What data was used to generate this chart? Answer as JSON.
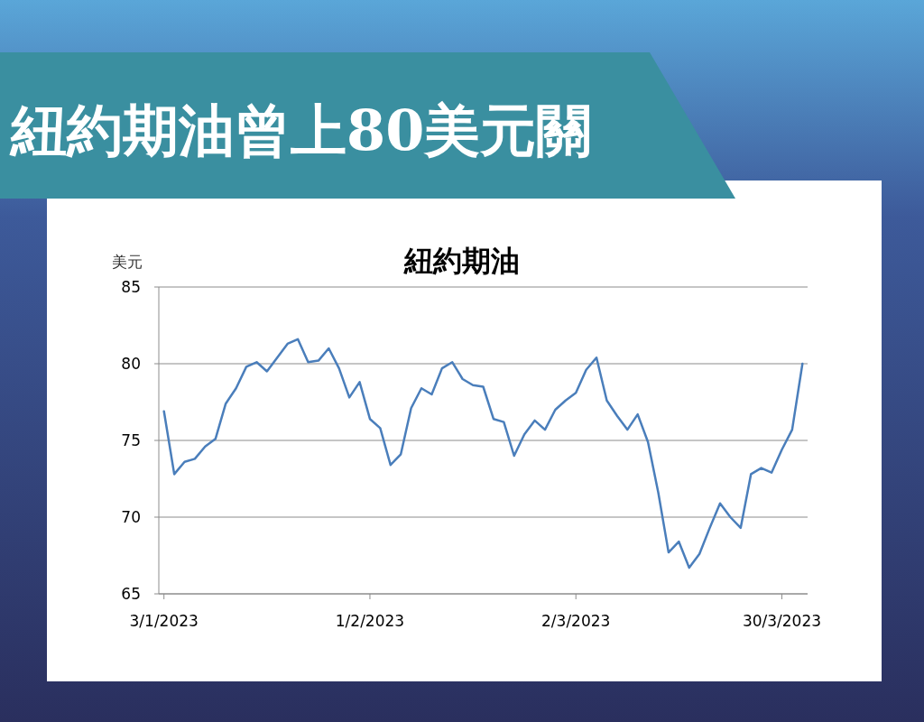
{
  "chart_data": {
    "type": "line",
    "title": "紐約期油曾上80美元關",
    "subtitle": "紐約期油",
    "ylabel": "美元",
    "categories": [
      "3/1/2023",
      null,
      null,
      null,
      null,
      null,
      null,
      null,
      null,
      null,
      null,
      null,
      null,
      null,
      null,
      null,
      null,
      null,
      null,
      null,
      "1/2/2023",
      null,
      null,
      null,
      null,
      null,
      null,
      null,
      null,
      null,
      null,
      null,
      null,
      null,
      null,
      null,
      null,
      null,
      null,
      null,
      "2/3/2023",
      null,
      null,
      null,
      null,
      null,
      null,
      null,
      null,
      null,
      null,
      null,
      null,
      null,
      null,
      null,
      null,
      null,
      null,
      null,
      "30/3/2023",
      null,
      null
    ],
    "series": [
      {
        "color": "#4a7ebb",
        "values": [
          76.9,
          72.8,
          73.6,
          73.8,
          74.6,
          75.1,
          77.4,
          78.4,
          79.8,
          80.1,
          79.5,
          80.4,
          81.3,
          81.6,
          80.1,
          80.2,
          81.0,
          79.7,
          77.8,
          78.8,
          76.4,
          75.8,
          73.4,
          74.1,
          77.1,
          78.4,
          78.0,
          79.7,
          80.1,
          79.0,
          78.6,
          78.5,
          76.4,
          76.2,
          74.0,
          75.4,
          76.3,
          75.7,
          77.0,
          77.6,
          78.1,
          79.6,
          80.4,
          77.6,
          76.6,
          75.7,
          76.7,
          74.9,
          71.6,
          67.7,
          68.4,
          66.7,
          67.6,
          69.3,
          70.9,
          70.0,
          69.3,
          72.8,
          73.2,
          72.9,
          74.4,
          75.7,
          80.0
        ]
      }
    ],
    "ylim": [
      65,
      85
    ],
    "yticks": [
      65,
      70,
      75,
      80,
      85
    ],
    "grid": "y",
    "marker": "none",
    "line_style": "solid"
  }
}
